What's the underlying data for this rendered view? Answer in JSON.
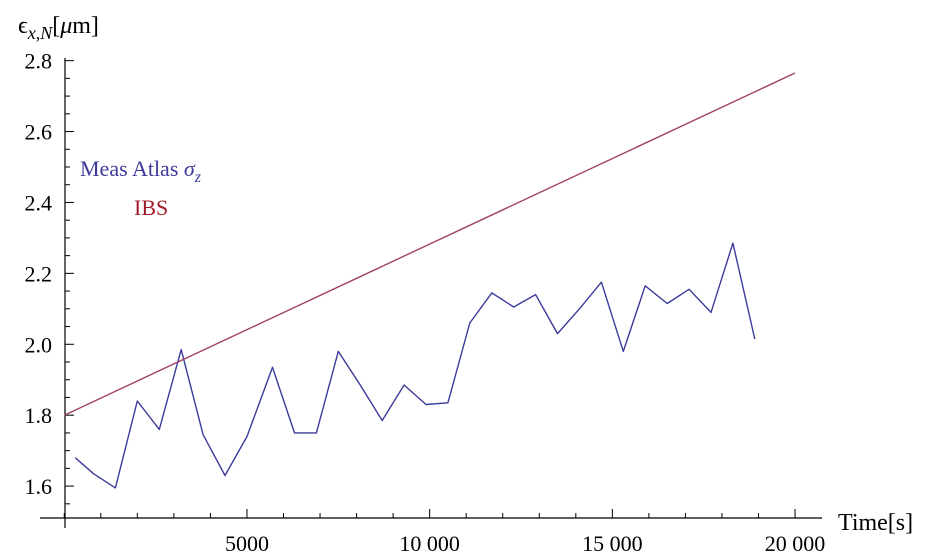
{
  "chart_data": {
    "type": "line",
    "ylabel": {
      "symbol": "ϵ",
      "subscript": "x,N",
      "unit_open": "[",
      "unit_mu": "μ",
      "unit_rest": "m]"
    },
    "xlabel": "Time[s]",
    "xlim": [
      -500,
      20300
    ],
    "ylim": [
      1.51,
      2.83
    ],
    "x_ticks": [
      {
        "value": 5000,
        "label": "5000"
      },
      {
        "value": 10000,
        "label": "10 000"
      },
      {
        "value": 15000,
        "label": "15 000"
      },
      {
        "value": 20000,
        "label": "20 000"
      }
    ],
    "x_minor_step": 1000,
    "y_ticks": [
      {
        "value": 1.6,
        "label": "1.6"
      },
      {
        "value": 1.8,
        "label": "1.8"
      },
      {
        "value": 2.0,
        "label": "2.0"
      },
      {
        "value": 2.2,
        "label": "2.2"
      },
      {
        "value": 2.4,
        "label": "2.4"
      },
      {
        "value": 2.6,
        "label": "2.6"
      },
      {
        "value": 2.8,
        "label": "2.8"
      }
    ],
    "y_minor_step": 0.05,
    "grid": false,
    "legend_position": "left",
    "series": [
      {
        "name": "Meas Atlas σz",
        "legend_main": "Meas Atlas ",
        "legend_sym": "σ",
        "legend_sub": "z",
        "color": "#3b3b9a",
        "x": [
          300,
          800,
          1400,
          2000,
          2600,
          3200,
          3800,
          4400,
          5000,
          5700,
          6300,
          6900,
          7500,
          8100,
          8700,
          9300,
          9900,
          10500,
          11100,
          11700,
          12300,
          12900,
          13500,
          14100,
          14700,
          15300,
          15900,
          16500,
          17100,
          17700,
          18300,
          18900
        ],
        "y": [
          1.68,
          1.635,
          1.595,
          1.84,
          1.76,
          1.985,
          1.745,
          1.63,
          1.74,
          1.935,
          1.75,
          1.75,
          1.98,
          1.885,
          1.785,
          1.885,
          1.83,
          1.835,
          2.06,
          2.145,
          2.105,
          2.14,
          2.03,
          2.1,
          2.175,
          1.98,
          2.165,
          2.115,
          2.155,
          2.09,
          2.285,
          2.015
        ]
      },
      {
        "name": "IBS",
        "legend_main": "IBS",
        "color": "#a0406a",
        "x": [
          0,
          20000
        ],
        "y": [
          1.8,
          2.765
        ]
      }
    ]
  }
}
